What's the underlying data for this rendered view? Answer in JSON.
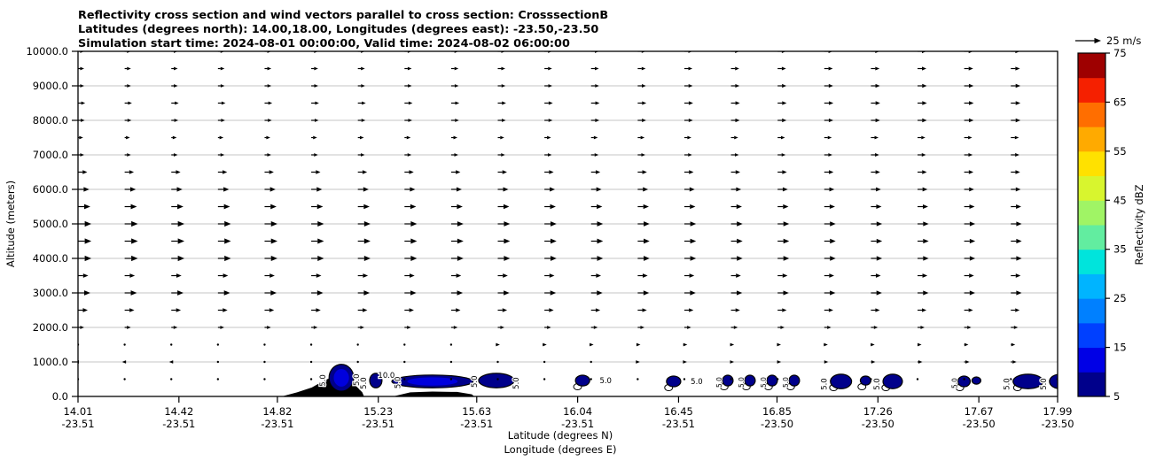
{
  "chart_data": {
    "type": "heatmap",
    "subtype": "vertical cross-section: reflectivity filled contours + wind quiver",
    "title_line1": "Reflectivity cross section and wind vectors parallel to cross section: CrosssectionB",
    "title_line2": "Latitudes (degrees north): 14.00,18.00, Longitudes (degrees east): -23.50,-23.50",
    "title_line3": "Simulation start time: 2024-08-01 00:00:00, Valid time: 2024-08-02 06:00:00",
    "ylabel": "Altitude (meters)",
    "xlabel_line1": "Latitude (degrees N)",
    "xlabel_line2": "Longitude (degrees E)",
    "ylim": [
      0,
      10000
    ],
    "xlim_lat": [
      14.01,
      17.99
    ],
    "grid": "horizontal gray lines every 1000 m",
    "y_ticks": [
      "10000.0",
      "9000.0",
      "8000.0",
      "7000.0",
      "6000.0",
      "5000.0",
      "4000.0",
      "3000.0",
      "2000.0",
      "1000.0",
      "0.0"
    ],
    "x_ticks": [
      {
        "lat": "14.01",
        "lon": "-23.51"
      },
      {
        "lat": "14.42",
        "lon": "-23.51"
      },
      {
        "lat": "14.82",
        "lon": "-23.51"
      },
      {
        "lat": "15.23",
        "lon": "-23.51"
      },
      {
        "lat": "15.63",
        "lon": "-23.51"
      },
      {
        "lat": "16.04",
        "lon": "-23.51"
      },
      {
        "lat": "16.45",
        "lon": "-23.51"
      },
      {
        "lat": "16.85",
        "lon": "-23.50"
      },
      {
        "lat": "17.26",
        "lon": "-23.50"
      },
      {
        "lat": "17.67",
        "lon": "-23.50"
      },
      {
        "lat": "17.99",
        "lon": "-23.50"
      }
    ],
    "quiver_key": {
      "label": "25 m/s",
      "speed_mps": 25
    },
    "colorbar": {
      "label": "Reflectivity dBZ",
      "range": [
        5,
        75
      ],
      "tick_labels_top_to_bottom": [
        "75",
        "65",
        "55",
        "45",
        "35",
        "25",
        "15",
        "5"
      ],
      "segment_colors_bottom_to_top": [
        "#00008b",
        "#0000e6",
        "#0040ff",
        "#0080ff",
        "#00b4ff",
        "#00e4dc",
        "#62eda0",
        "#a0f465",
        "#d8f52e",
        "#ffe100",
        "#ffaa00",
        "#ff6e00",
        "#f52000",
        "#9e0000"
      ]
    },
    "wind_columns": {
      "count": 22,
      "lat_start": 14.01,
      "lat_step": 0.1895
    },
    "wind_rows": [
      {
        "alt_m": 10000,
        "speed_left_mps": 6.0,
        "speed_right_mps": 9.0
      },
      {
        "alt_m": 9500,
        "speed_left_mps": 6.0,
        "speed_right_mps": 9.0
      },
      {
        "alt_m": 9000,
        "speed_left_mps": 6.0,
        "speed_right_mps": 9.5
      },
      {
        "alt_m": 8500,
        "speed_left_mps": 7.0,
        "speed_right_mps": 9.5
      },
      {
        "alt_m": 8000,
        "speed_left_mps": 6.5,
        "speed_right_mps": 9.5
      },
      {
        "alt_m": 7500,
        "speed_left_mps": 5.0,
        "speed_right_mps": 8.0
      },
      {
        "alt_m": 7000,
        "speed_left_mps": 6.0,
        "speed_right_mps": 8.5
      },
      {
        "alt_m": 6500,
        "speed_left_mps": 9.0,
        "speed_right_mps": 9.0
      },
      {
        "alt_m": 6000,
        "speed_left_mps": 11.0,
        "speed_right_mps": 9.5
      },
      {
        "alt_m": 5500,
        "speed_left_mps": 12.0,
        "speed_right_mps": 10.0
      },
      {
        "alt_m": 5000,
        "speed_left_mps": 13.0,
        "speed_right_mps": 10.5
      },
      {
        "alt_m": 4500,
        "speed_left_mps": 13.0,
        "speed_right_mps": 10.5
      },
      {
        "alt_m": 4000,
        "speed_left_mps": 13.0,
        "speed_right_mps": 10.5
      },
      {
        "alt_m": 3500,
        "speed_left_mps": 10.0,
        "speed_right_mps": 9.5
      },
      {
        "alt_m": 3000,
        "speed_left_mps": 12.0,
        "speed_right_mps": 10.5
      },
      {
        "alt_m": 2500,
        "speed_left_mps": 9.5,
        "speed_right_mps": 8.5
      },
      {
        "alt_m": 2000,
        "speed_left_mps": 6.0,
        "speed_right_mps": 7.0
      },
      {
        "alt_m": 1500,
        "speed_left_mps": 0.2,
        "speed_right_mps": 4.5
      },
      {
        "alt_m": 1000,
        "speed_left_mps": -3.0,
        "speed_right_mps": 6.0
      },
      {
        "alt_m": 500,
        "speed_left_mps": 0.4,
        "speed_right_mps": 0.4
      }
    ],
    "reflectivity_cells": [
      {
        "lat": 15.08,
        "alt_m": 540,
        "w_deg": 0.1,
        "h_m": 780,
        "inner": true,
        "label": "5.0",
        "lp": "left-rot"
      },
      {
        "lat": 15.22,
        "alt_m": 460,
        "w_deg": 0.05,
        "h_m": 420,
        "label": "5.0",
        "lp": "left-rot"
      },
      {
        "lat": 15.45,
        "alt_m": 435,
        "w_deg": 0.33,
        "h_m": 370,
        "inner": true
      },
      {
        "lat": 15.71,
        "alt_m": 460,
        "w_deg": 0.145,
        "h_m": 420,
        "label": "5.0",
        "lp": "right-rot"
      },
      {
        "lat": 16.06,
        "alt_m": 460,
        "w_deg": 0.058,
        "h_m": 310,
        "ring": true,
        "label": "5.0",
        "lp": "right"
      },
      {
        "lat": 16.43,
        "alt_m": 435,
        "w_deg": 0.058,
        "h_m": 310,
        "ring": true,
        "label": "5.0",
        "lp": "right"
      },
      {
        "lat": 16.65,
        "alt_m": 460,
        "w_deg": 0.043,
        "h_m": 310,
        "ring": true,
        "label": "5.0",
        "lp": "left-rot-small"
      },
      {
        "lat": 16.74,
        "alt_m": 460,
        "w_deg": 0.043,
        "h_m": 310,
        "ring": true,
        "label": "5.0",
        "lp": "left-rot-small"
      },
      {
        "lat": 16.83,
        "alt_m": 460,
        "w_deg": 0.043,
        "h_m": 310,
        "ring": true,
        "label": "5.0",
        "lp": "left-rot-small"
      },
      {
        "lat": 16.92,
        "alt_m": 460,
        "w_deg": 0.043,
        "h_m": 310,
        "ring": true,
        "label": "5.0",
        "lp": "left-rot-small"
      },
      {
        "lat": 17.11,
        "alt_m": 435,
        "w_deg": 0.086,
        "h_m": 420,
        "ring": true,
        "label": "5.0",
        "lp": "left-rot"
      },
      {
        "lat": 17.21,
        "alt_m": 460,
        "w_deg": 0.043,
        "h_m": 260,
        "ring": true
      },
      {
        "lat": 17.32,
        "alt_m": 435,
        "w_deg": 0.079,
        "h_m": 420,
        "ring": true,
        "label": "5.0",
        "lp": "left-rot"
      },
      {
        "lat": 17.61,
        "alt_m": 435,
        "w_deg": 0.05,
        "h_m": 310,
        "ring": true,
        "label": "5.0",
        "lp": "left-rot-small"
      },
      {
        "lat": 17.66,
        "alt_m": 460,
        "w_deg": 0.036,
        "h_m": 210
      },
      {
        "lat": 17.87,
        "alt_m": 435,
        "w_deg": 0.122,
        "h_m": 420,
        "ring": true,
        "label": "5.0",
        "lp": "left-rot"
      },
      {
        "lat": 18.0,
        "alt_m": 435,
        "w_deg": 0.086,
        "h_m": 420,
        "label": "5.0",
        "lp": "left-rot"
      }
    ],
    "extra_contour_labels": [
      {
        "lat": 15.152,
        "alt_m": 480,
        "text": "5.0",
        "rot": true
      },
      {
        "lat": 15.263,
        "alt_m": 540,
        "text": "10.0",
        "rot": false
      },
      {
        "lat": 15.32,
        "alt_m": 400,
        "text": "5.0",
        "rot": true
      },
      {
        "lat": 15.63,
        "alt_m": 430,
        "text": "5.0",
        "rot": true
      }
    ],
    "terrain_polygons_lat_alt": [
      [
        [
          14.838,
          0
        ],
        [
          14.9,
          120
        ],
        [
          14.96,
          260
        ],
        [
          15.0,
          420
        ],
        [
          15.04,
          560
        ],
        [
          15.065,
          615
        ],
        [
          15.09,
          590
        ],
        [
          15.115,
          480
        ],
        [
          15.14,
          300
        ],
        [
          15.165,
          120
        ],
        [
          15.172,
          0
        ]
      ],
      [
        [
          15.29,
          0
        ],
        [
          15.36,
          120
        ],
        [
          15.45,
          140
        ],
        [
          15.55,
          130
        ],
        [
          15.61,
          60
        ],
        [
          15.62,
          0
        ]
      ]
    ],
    "colors": {
      "cell_fill_outer": "#00008b",
      "cell_fill_inner": "#0000dd",
      "terrain": "#000000",
      "gridline": "#b3b3b3",
      "arrow": "#000000"
    }
  }
}
